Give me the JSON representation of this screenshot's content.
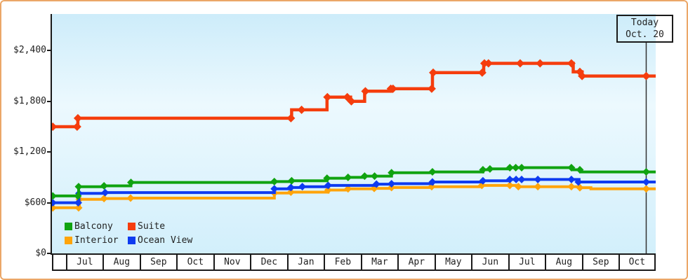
{
  "window": {
    "bg": "#ffffff",
    "border_color": "#eba768"
  },
  "chart_data": {
    "type": "line",
    "subtype": "step-after-price-history",
    "title": "",
    "xlabel": "",
    "ylabel": "",
    "grid": false,
    "y_axis": {
      "tick_labels": [
        "$2,400",
        "$1,800",
        "$1,200",
        "$600",
        "$0"
      ],
      "tick_values": [
        2400,
        1800,
        1200,
        600,
        0
      ],
      "ylim": [
        0,
        2835
      ]
    },
    "x_axis": {
      "month_labels": [
        "Jul",
        "Aug",
        "Sep",
        "Oct",
        "Nov",
        "Dec",
        "Jan",
        "Feb",
        "Mar",
        "Apr",
        "May",
        "Jun",
        "Jul",
        "Aug",
        "Sep",
        "Oct"
      ],
      "note": "x unit u = months since first Jul cell start; plot spans u=-0.374 to u=16.0"
    },
    "today": {
      "label_line1": "Today",
      "label_line2": "Oct. 20",
      "u": 15.75,
      "line_color": "#333333"
    },
    "legend": {
      "position": "bottom-left",
      "items": [
        {
          "label": "Balcony",
          "color": "#10a310"
        },
        {
          "label": "Suite",
          "color": "#f53d0d"
        },
        {
          "label": "Interior",
          "color": "#ffa40a"
        },
        {
          "label": "Ocean View",
          "color": "#0e3bf0"
        }
      ]
    },
    "series": [
      {
        "name": "Interior",
        "color": "#ffa40a",
        "steps": [
          [
            -0.37,
            540
          ],
          [
            0.37,
            640
          ],
          [
            1.04,
            650
          ],
          [
            1.76,
            655
          ],
          [
            5.66,
            715
          ],
          [
            6.11,
            725
          ],
          [
            7.12,
            750
          ],
          [
            7.66,
            765
          ],
          [
            8.39,
            770
          ],
          [
            8.84,
            780
          ],
          [
            9.93,
            790
          ],
          [
            11.29,
            805
          ],
          [
            12.28,
            790
          ],
          [
            13.95,
            778
          ],
          [
            14.25,
            765
          ]
        ],
        "dots": [
          [
            -0.35,
            540
          ],
          [
            0.35,
            540
          ],
          [
            0.37,
            640
          ],
          [
            1.04,
            650
          ],
          [
            1.76,
            655
          ],
          [
            5.66,
            715
          ],
          [
            6.11,
            725
          ],
          [
            7.12,
            750
          ],
          [
            7.66,
            765
          ],
          [
            8.37,
            770
          ],
          [
            8.84,
            780
          ],
          [
            9.93,
            790
          ],
          [
            11.29,
            805
          ],
          [
            12.05,
            805
          ],
          [
            12.28,
            790
          ],
          [
            12.81,
            790
          ],
          [
            13.72,
            790
          ],
          [
            13.95,
            778
          ],
          [
            15.75,
            765
          ]
        ]
      },
      {
        "name": "Ocean View",
        "color": "#0e3bf0",
        "steps": [
          [
            -0.37,
            600
          ],
          [
            0.36,
            710
          ],
          [
            1.07,
            720
          ],
          [
            5.66,
            765
          ],
          [
            6.11,
            780
          ],
          [
            6.42,
            790
          ],
          [
            7.12,
            805
          ],
          [
            8.43,
            820
          ],
          [
            8.84,
            825
          ],
          [
            9.95,
            845
          ],
          [
            11.32,
            860
          ],
          [
            12.05,
            875
          ],
          [
            13.93,
            845
          ]
        ],
        "dots": [
          [
            -0.35,
            600
          ],
          [
            0.34,
            600
          ],
          [
            0.36,
            710
          ],
          [
            1.07,
            720
          ],
          [
            5.66,
            765
          ],
          [
            6.11,
            780
          ],
          [
            6.42,
            790
          ],
          [
            7.12,
            805
          ],
          [
            8.43,
            820
          ],
          [
            8.84,
            825
          ],
          [
            9.95,
            845
          ],
          [
            11.32,
            860
          ],
          [
            12.05,
            875
          ],
          [
            12.22,
            875
          ],
          [
            12.37,
            875
          ],
          [
            12.81,
            875
          ],
          [
            13.72,
            875
          ],
          [
            13.91,
            845
          ],
          [
            15.75,
            845
          ]
        ]
      },
      {
        "name": "Balcony",
        "color": "#10a310",
        "steps": [
          [
            -0.37,
            680
          ],
          [
            0.35,
            790
          ],
          [
            1.04,
            800
          ],
          [
            1.77,
            840
          ],
          [
            5.66,
            850
          ],
          [
            6.13,
            860
          ],
          [
            7.09,
            890
          ],
          [
            7.66,
            900
          ],
          [
            8.11,
            915
          ],
          [
            8.84,
            955
          ],
          [
            9.95,
            965
          ],
          [
            11.32,
            990
          ],
          [
            11.51,
            1000
          ],
          [
            12.05,
            1015
          ],
          [
            13.74,
            990
          ],
          [
            13.97,
            965
          ]
        ],
        "dots": [
          [
            -0.35,
            680
          ],
          [
            0.33,
            680
          ],
          [
            0.35,
            790
          ],
          [
            1.04,
            800
          ],
          [
            1.77,
            840
          ],
          [
            5.66,
            850
          ],
          [
            6.13,
            860
          ],
          [
            7.09,
            890
          ],
          [
            7.66,
            900
          ],
          [
            8.11,
            915
          ],
          [
            8.38,
            915
          ],
          [
            8.84,
            955
          ],
          [
            9.95,
            965
          ],
          [
            11.32,
            990
          ],
          [
            11.51,
            1000
          ],
          [
            12.05,
            1015
          ],
          [
            12.21,
            1015
          ],
          [
            12.37,
            1015
          ],
          [
            13.72,
            1015
          ],
          [
            13.95,
            990
          ],
          [
            15.75,
            965
          ]
        ]
      },
      {
        "name": "Suite",
        "color": "#f53d0d",
        "steps": [
          [
            -0.37,
            1500
          ],
          [
            0.33,
            1600
          ],
          [
            6.13,
            1700
          ],
          [
            7.09,
            1850
          ],
          [
            7.73,
            1800
          ],
          [
            8.11,
            1920
          ],
          [
            8.84,
            1950
          ],
          [
            9.95,
            2140
          ],
          [
            11.34,
            2250
          ],
          [
            13.77,
            2150
          ],
          [
            14.01,
            2100
          ]
        ],
        "dots": [
          [
            -0.35,
            1500
          ],
          [
            0.31,
            1500
          ],
          [
            0.33,
            1600
          ],
          [
            6.11,
            1600
          ],
          [
            6.4,
            1700
          ],
          [
            7.1,
            1850
          ],
          [
            7.64,
            1850
          ],
          [
            7.75,
            1800
          ],
          [
            8.13,
            1920
          ],
          [
            8.82,
            1950
          ],
          [
            8.88,
            1950
          ],
          [
            9.93,
            1950
          ],
          [
            9.97,
            2140
          ],
          [
            11.3,
            2140
          ],
          [
            11.36,
            2250
          ],
          [
            11.47,
            2250
          ],
          [
            12.33,
            2250
          ],
          [
            12.87,
            2250
          ],
          [
            13.72,
            2250
          ],
          [
            13.95,
            2150
          ],
          [
            14.01,
            2100
          ],
          [
            15.75,
            2100
          ]
        ]
      }
    ]
  }
}
